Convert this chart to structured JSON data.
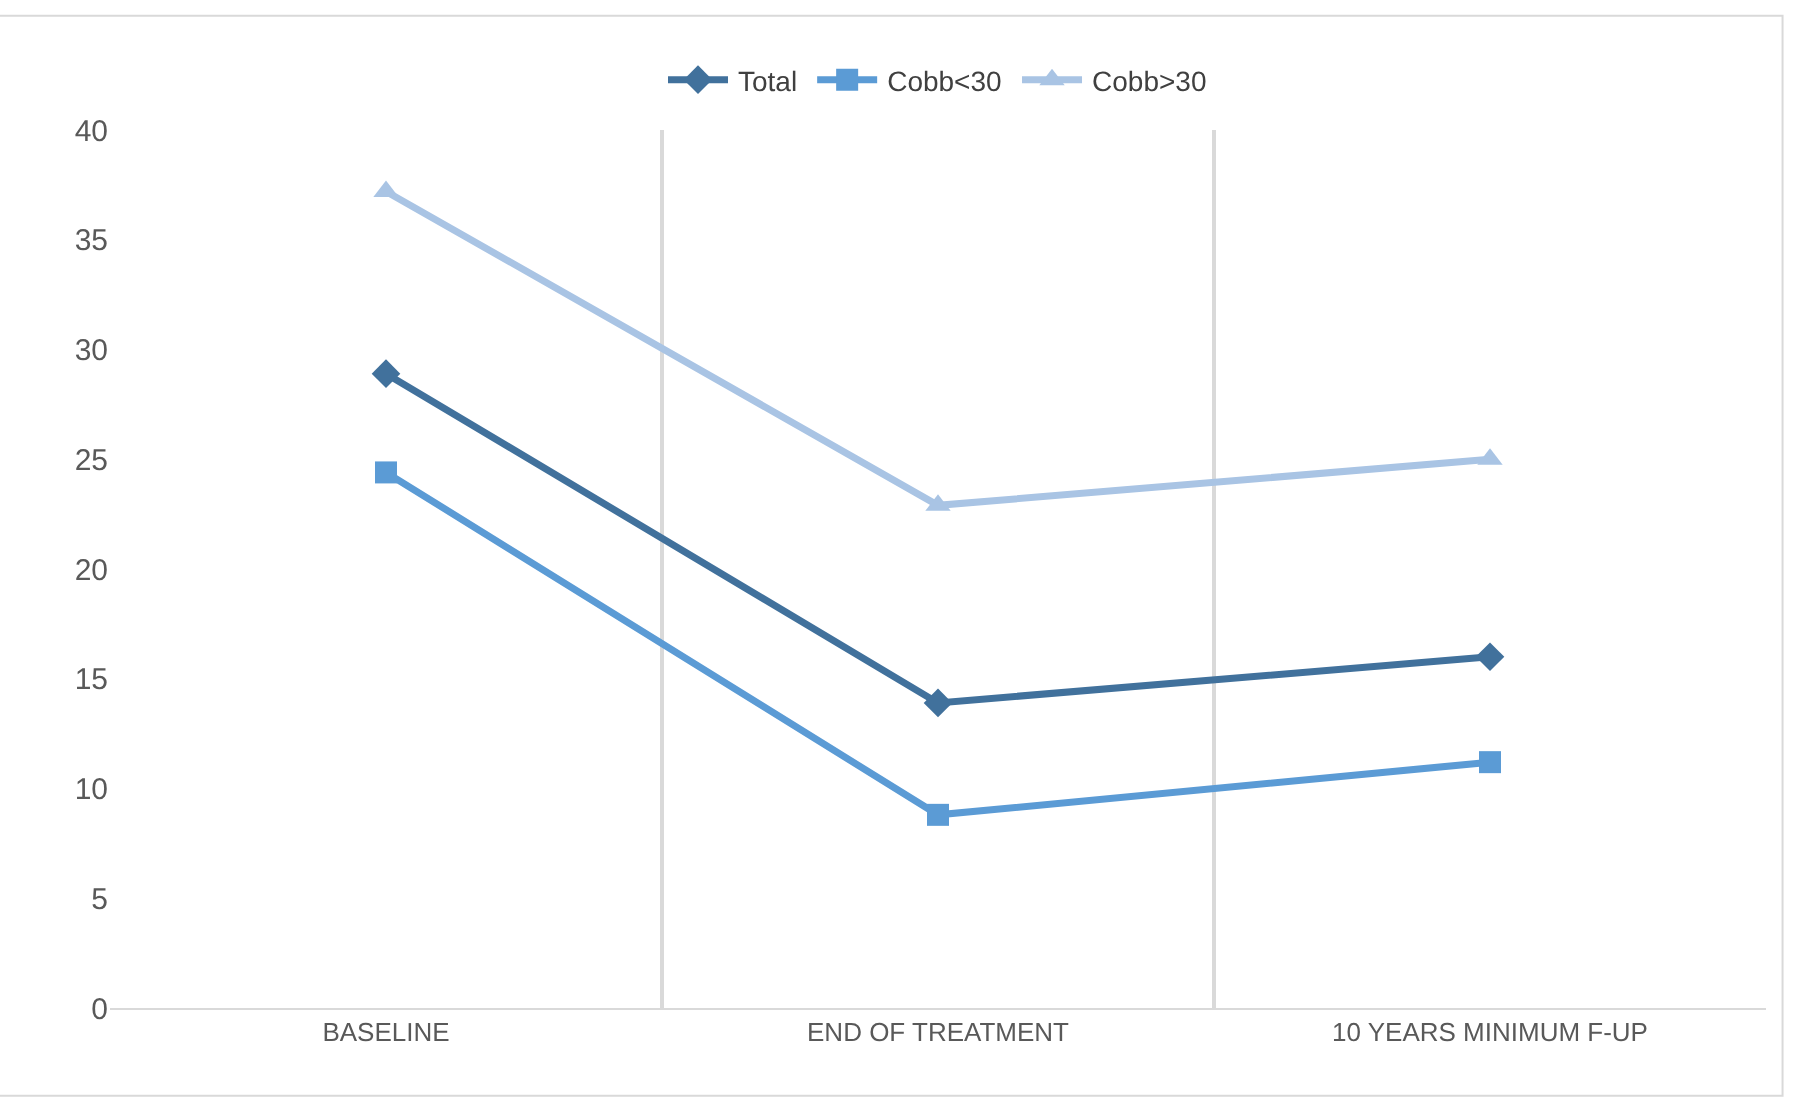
{
  "chart_data": {
    "type": "line",
    "categories": [
      "BASELINE",
      "END OF TREATMENT",
      "10 YEARS MINIMUM F-UP"
    ],
    "series": [
      {
        "name": "Total",
        "color": "#41719c",
        "marker": "diamond",
        "values": [
          28.9,
          13.9,
          16.0
        ]
      },
      {
        "name": "Cobb<30",
        "color": "#5b9bd5",
        "marker": "square",
        "values": [
          24.4,
          8.8,
          11.2
        ]
      },
      {
        "name": "Cobb>30",
        "color": "#a9c4e4",
        "marker": "triangle",
        "values": [
          37.2,
          22.9,
          25.0
        ]
      }
    ],
    "ylim": [
      0,
      40
    ],
    "yticks": [
      0,
      5,
      10,
      15,
      20,
      25,
      30,
      35,
      40
    ],
    "grid": "x",
    "legend": "top",
    "line_style": "solid"
  }
}
